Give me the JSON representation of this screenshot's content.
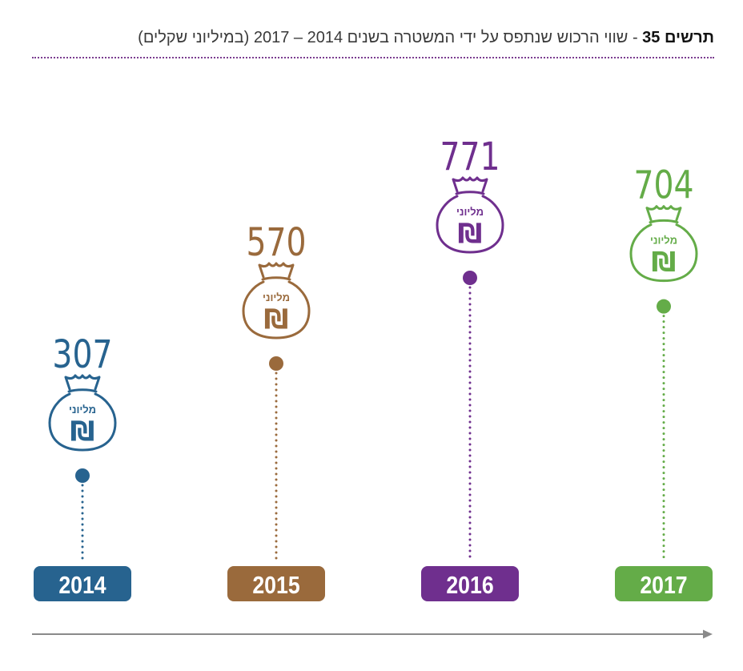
{
  "title": {
    "label_bold": "תרשים 35",
    "separator": " - ",
    "text": "שווי הרכוש שנתפס על ידי המשטרה בשנים 2014 – 2017 (במיליוני שקלים)"
  },
  "bag": {
    "word": "מליוני",
    "symbol": "₪"
  },
  "chart_data": {
    "type": "bar",
    "title": "שווי הרכוש שנתפס על ידי המשטרה בשנים 2014 – 2017 (במיליוני שקלים)",
    "categories": [
      "2014",
      "2015",
      "2016",
      "2017"
    ],
    "values": [
      307,
      570,
      771,
      704
    ],
    "colors": [
      "#27638f",
      "#9a6a3c",
      "#6f2f8e",
      "#64ac48"
    ],
    "ylabel": "מיליוני שקלים",
    "xlabel": "",
    "ylim": [
      0,
      771
    ]
  }
}
